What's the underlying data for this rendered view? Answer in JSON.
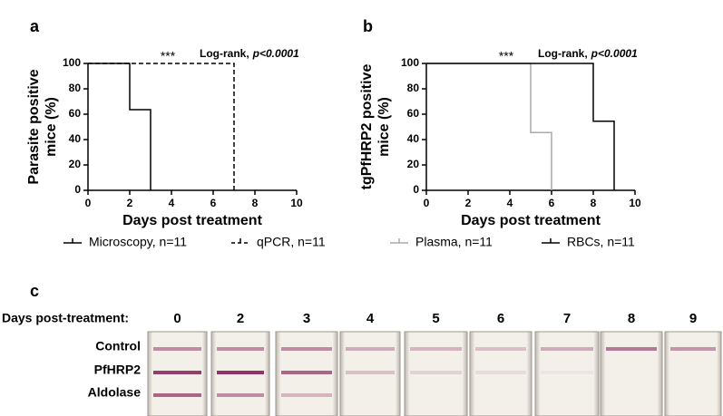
{
  "chart_data": [
    {
      "type": "step",
      "panel": "a",
      "ylabel": [
        "Parasite positive",
        "mice (%)"
      ],
      "xlabel": "Days post treatment",
      "annotation_stars": "***",
      "annotation_test": "Log-rank,",
      "annotation_p": "p<0.0001",
      "xlim": [
        0,
        10
      ],
      "xticks": [
        0,
        2,
        4,
        6,
        8,
        10
      ],
      "ylim": [
        0,
        100
      ],
      "yticks": [
        0,
        20,
        40,
        60,
        80,
        100
      ],
      "series": [
        {
          "name": "Microscopy, n=11",
          "color": "#000000",
          "dashed": false,
          "x": [
            0,
            2,
            3
          ],
          "values": [
            100,
            63.6,
            0
          ]
        },
        {
          "name": "qPCR, n=11",
          "color": "#000000",
          "dashed": true,
          "x": [
            0,
            7
          ],
          "values": [
            100,
            0
          ]
        }
      ]
    },
    {
      "type": "step",
      "panel": "b",
      "ylabel": [
        "tgPfHRP2 positive",
        "mice (%)"
      ],
      "xlabel": "Days post treatment",
      "annotation_stars": "***",
      "annotation_test": "Log-rank,",
      "annotation_p": "p<0.0001",
      "xlim": [
        0,
        10
      ],
      "xticks": [
        0,
        2,
        4,
        6,
        8,
        10
      ],
      "ylim": [
        0,
        100
      ],
      "yticks": [
        0,
        20,
        40,
        60,
        80,
        100
      ],
      "series": [
        {
          "name": "Plasma, n=11",
          "color": "#aaaaaa",
          "dashed": false,
          "x": [
            0,
            5,
            6
          ],
          "values": [
            100,
            45.5,
            0
          ]
        },
        {
          "name": "RBCs, n=11",
          "color": "#000000",
          "dashed": false,
          "x": [
            0,
            8,
            9
          ],
          "values": [
            100,
            54.5,
            0
          ]
        }
      ]
    }
  ],
  "panel_c": {
    "panel": "c",
    "days_label": "Days post-treatment:",
    "days": [
      "0",
      "2",
      "3",
      "4",
      "5",
      "6",
      "7",
      "8",
      "9"
    ],
    "rows": [
      "Control",
      "PfHRP2",
      "Aldolase"
    ]
  }
}
